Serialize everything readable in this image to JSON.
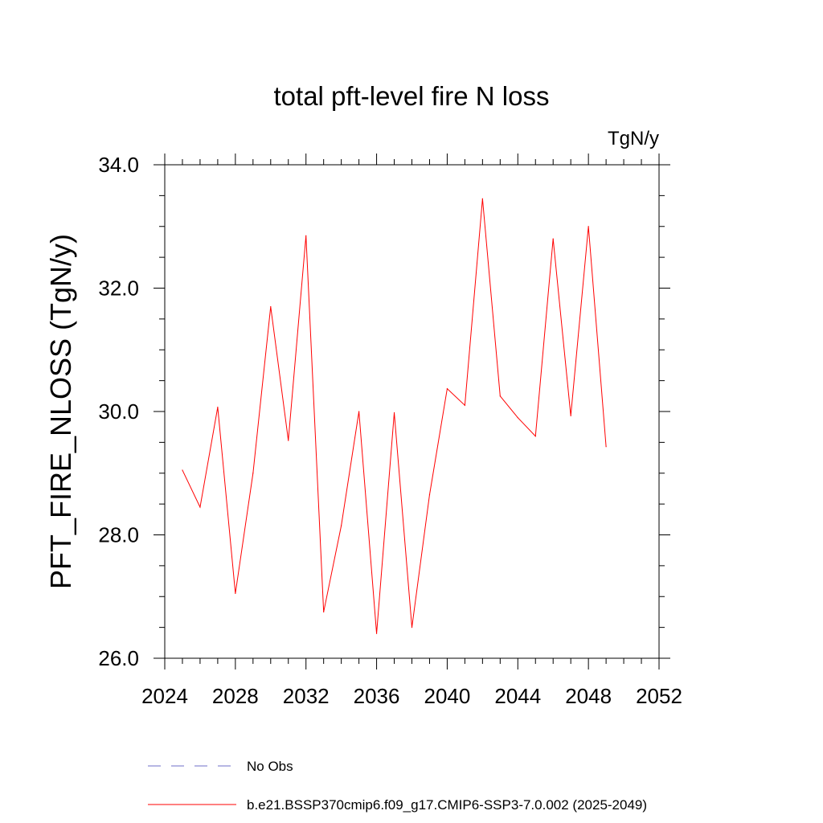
{
  "chart_data": {
    "type": "line",
    "title": "total pft-level fire N loss",
    "units_label": "TgN/y",
    "xlabel": "",
    "ylabel": "PFT_FIRE_NLOSS  (TgN/y)",
    "xlim": [
      2024,
      2052
    ],
    "ylim": [
      26.0,
      34.0
    ],
    "x_ticks": [
      2024,
      2028,
      2032,
      2036,
      2040,
      2044,
      2048,
      2052
    ],
    "x_tick_labels": [
      "2024",
      "2028",
      "2032",
      "2036",
      "2040",
      "2044",
      "2048",
      "2052"
    ],
    "y_ticks": [
      26.0,
      28.0,
      30.0,
      32.0,
      34.0
    ],
    "y_tick_labels": [
      "26.0",
      "28.0",
      "30.0",
      "32.0",
      "34.0"
    ],
    "x_minor_step": 1,
    "y_minor_step": 0.5,
    "grid": false,
    "legend_position": "bottom",
    "series": [
      {
        "name": "b.e21.BSSP370cmip6.f09_g17.CMIP6-SSP3-7.0.002 (2025-2049)",
        "color": "#ff0000",
        "dash": "solid",
        "x": [
          2025,
          2026,
          2027,
          2028,
          2029,
          2030,
          2031,
          2032,
          2033,
          2034,
          2035,
          2036,
          2037,
          2038,
          2039,
          2040,
          2041,
          2042,
          2043,
          2044,
          2045,
          2046,
          2047,
          2048,
          2049
        ],
        "values": [
          29.05,
          28.45,
          30.07,
          27.05,
          29.0,
          31.7,
          29.53,
          32.85,
          26.75,
          28.15,
          30.0,
          26.4,
          29.98,
          26.5,
          28.65,
          30.37,
          30.1,
          33.45,
          30.25,
          29.9,
          29.6,
          32.8,
          29.93,
          33.0,
          29.43
        ]
      }
    ],
    "legend": [
      {
        "name": "No Obs",
        "color": "#6f6fc8",
        "dash": "dashed"
      },
      {
        "name": "b.e21.BSSP370cmip6.f09_g17.CMIP6-SSP3-7.0.002 (2025-2049)",
        "color": "#ff0000",
        "dash": "solid"
      }
    ]
  }
}
